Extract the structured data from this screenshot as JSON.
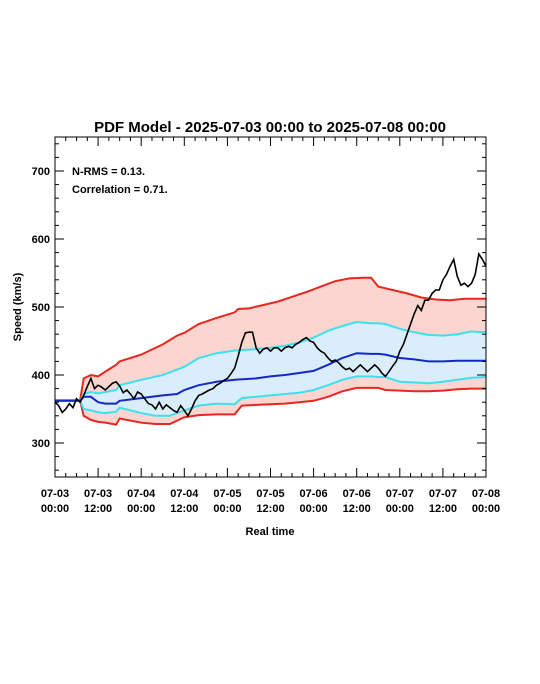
{
  "chart_data": {
    "type": "line",
    "title": "PDF Model - 2025-07-03 00:00 to 2025-07-08 00:00",
    "xlabel": "Real time",
    "ylabel": "Speed (km/s)",
    "xlim": [
      0,
      120
    ],
    "ylim": [
      250,
      750
    ],
    "y_ticks": [
      300,
      400,
      500,
      600,
      700
    ],
    "x_ticks": [
      {
        "x": 0,
        "line1": "07-03",
        "line2": "00:00"
      },
      {
        "x": 12,
        "line1": "07-03",
        "line2": "12:00"
      },
      {
        "x": 24,
        "line1": "07-04",
        "line2": "00:00"
      },
      {
        "x": 36,
        "line1": "07-04",
        "line2": "12:00"
      },
      {
        "x": 48,
        "line1": "07-05",
        "line2": "00:00"
      },
      {
        "x": 60,
        "line1": "07-05",
        "line2": "12:00"
      },
      {
        "x": 72,
        "line1": "07-06",
        "line2": "00:00"
      },
      {
        "x": 84,
        "line1": "07-06",
        "line2": "12:00"
      },
      {
        "x": 96,
        "line1": "07-07",
        "line2": "00:00"
      },
      {
        "x": 108,
        "line1": "07-07",
        "line2": "12:00"
      },
      {
        "x": 120,
        "line1": "07-08",
        "line2": "00:00"
      }
    ],
    "annotations": [
      "N-RMS = 0.13.",
      "Correlation = 0.71."
    ],
    "grid": false,
    "x_unit": "hours since 07-03 00:00",
    "colors": {
      "outer_band": "#e8281e",
      "outer_fill": "#fbd5d0",
      "inner_band": "#3ee0ee",
      "inner_fill": "#d9eefa",
      "median": "#1428c8",
      "observed": "#000000"
    },
    "series": [
      {
        "name": "upper_outer",
        "points": [
          [
            0,
            363
          ],
          [
            7,
            363
          ],
          [
            8,
            395
          ],
          [
            10,
            400
          ],
          [
            12,
            398
          ],
          [
            14,
            405
          ],
          [
            17,
            415
          ],
          [
            18,
            420
          ],
          [
            24,
            430
          ],
          [
            30,
            445
          ],
          [
            34,
            458
          ],
          [
            36,
            462
          ],
          [
            40,
            475
          ],
          [
            45,
            484
          ],
          [
            50,
            492
          ],
          [
            51,
            497
          ],
          [
            54,
            498
          ],
          [
            58,
            503
          ],
          [
            62,
            508
          ],
          [
            66,
            515
          ],
          [
            70,
            522
          ],
          [
            74,
            530
          ],
          [
            78,
            538
          ],
          [
            82,
            542
          ],
          [
            86,
            543
          ],
          [
            88,
            543
          ],
          [
            90,
            530
          ],
          [
            94,
            525
          ],
          [
            98,
            520
          ],
          [
            102,
            514
          ],
          [
            106,
            511
          ],
          [
            110,
            510
          ],
          [
            114,
            512
          ],
          [
            120,
            512
          ]
        ]
      },
      {
        "name": "upper_inner",
        "points": [
          [
            0,
            362
          ],
          [
            7,
            362
          ],
          [
            8,
            372
          ],
          [
            10,
            375
          ],
          [
            12,
            373
          ],
          [
            14,
            375
          ],
          [
            17,
            378
          ],
          [
            18,
            385
          ],
          [
            24,
            393
          ],
          [
            30,
            400
          ],
          [
            34,
            408
          ],
          [
            36,
            412
          ],
          [
            40,
            425
          ],
          [
            45,
            432
          ],
          [
            50,
            436
          ],
          [
            56,
            438
          ],
          [
            60,
            440
          ],
          [
            64,
            443
          ],
          [
            68,
            448
          ],
          [
            72,
            455
          ],
          [
            76,
            465
          ],
          [
            80,
            472
          ],
          [
            84,
            478
          ],
          [
            88,
            476
          ],
          [
            90,
            476
          ],
          [
            92,
            475
          ],
          [
            96,
            468
          ],
          [
            100,
            463
          ],
          [
            104,
            459
          ],
          [
            108,
            458
          ],
          [
            112,
            460
          ],
          [
            116,
            464
          ],
          [
            120,
            463
          ]
        ]
      },
      {
        "name": "median",
        "points": [
          [
            0,
            362
          ],
          [
            7,
            362
          ],
          [
            8,
            368
          ],
          [
            10,
            368
          ],
          [
            12,
            360
          ],
          [
            14,
            358
          ],
          [
            17,
            358
          ],
          [
            18,
            362
          ],
          [
            24,
            366
          ],
          [
            30,
            370
          ],
          [
            34,
            372
          ],
          [
            36,
            378
          ],
          [
            40,
            385
          ],
          [
            45,
            390
          ],
          [
            50,
            393
          ],
          [
            56,
            395
          ],
          [
            60,
            398
          ],
          [
            64,
            400
          ],
          [
            68,
            403
          ],
          [
            72,
            406
          ],
          [
            76,
            415
          ],
          [
            80,
            425
          ],
          [
            84,
            432
          ],
          [
            88,
            431
          ],
          [
            90,
            431
          ],
          [
            92,
            430
          ],
          [
            96,
            425
          ],
          [
            100,
            423
          ],
          [
            104,
            420
          ],
          [
            108,
            420
          ],
          [
            112,
            421
          ],
          [
            116,
            421
          ],
          [
            120,
            421
          ]
        ]
      },
      {
        "name": "lower_inner",
        "points": [
          [
            0,
            362
          ],
          [
            7,
            362
          ],
          [
            8,
            350
          ],
          [
            10,
            348
          ],
          [
            12,
            345
          ],
          [
            14,
            344
          ],
          [
            17,
            346
          ],
          [
            18,
            352
          ],
          [
            24,
            344
          ],
          [
            28,
            340
          ],
          [
            32,
            340
          ],
          [
            36,
            348
          ],
          [
            40,
            355
          ],
          [
            45,
            358
          ],
          [
            50,
            357
          ],
          [
            52,
            366
          ],
          [
            56,
            368
          ],
          [
            60,
            370
          ],
          [
            64,
            372
          ],
          [
            68,
            374
          ],
          [
            72,
            378
          ],
          [
            76,
            385
          ],
          [
            80,
            393
          ],
          [
            84,
            398
          ],
          [
            88,
            398
          ],
          [
            90,
            397
          ],
          [
            92,
            397
          ],
          [
            96,
            390
          ],
          [
            100,
            389
          ],
          [
            104,
            388
          ],
          [
            108,
            390
          ],
          [
            112,
            393
          ],
          [
            116,
            396
          ],
          [
            120,
            397
          ]
        ]
      },
      {
        "name": "lower_outer",
        "points": [
          [
            0,
            362
          ],
          [
            7,
            362
          ],
          [
            8,
            340
          ],
          [
            10,
            334
          ],
          [
            12,
            331
          ],
          [
            14,
            330
          ],
          [
            17,
            327
          ],
          [
            18,
            336
          ],
          [
            24,
            330
          ],
          [
            28,
            328
          ],
          [
            32,
            328
          ],
          [
            36,
            338
          ],
          [
            40,
            341
          ],
          [
            45,
            342
          ],
          [
            50,
            342
          ],
          [
            52,
            355
          ],
          [
            56,
            356
          ],
          [
            60,
            357
          ],
          [
            64,
            358
          ],
          [
            68,
            360
          ],
          [
            72,
            362
          ],
          [
            76,
            368
          ],
          [
            80,
            376
          ],
          [
            84,
            381
          ],
          [
            88,
            381
          ],
          [
            90,
            381
          ],
          [
            92,
            378
          ],
          [
            96,
            377
          ],
          [
            100,
            376
          ],
          [
            104,
            376
          ],
          [
            108,
            377
          ],
          [
            112,
            379
          ],
          [
            116,
            380
          ],
          [
            120,
            380
          ]
        ]
      },
      {
        "name": "observed",
        "points": [
          [
            0,
            360
          ],
          [
            1,
            355
          ],
          [
            2,
            345
          ],
          [
            3,
            350
          ],
          [
            4,
            358
          ],
          [
            5,
            352
          ],
          [
            6,
            365
          ],
          [
            7,
            360
          ],
          [
            8,
            370
          ],
          [
            9,
            383
          ],
          [
            10,
            395
          ],
          [
            11,
            380
          ],
          [
            12,
            385
          ],
          [
            13,
            382
          ],
          [
            14,
            378
          ],
          [
            15,
            383
          ],
          [
            16,
            388
          ],
          [
            17,
            390
          ],
          [
            18,
            384
          ],
          [
            19,
            374
          ],
          [
            20,
            378
          ],
          [
            21,
            372
          ],
          [
            22,
            365
          ],
          [
            23,
            375
          ],
          [
            24,
            372
          ],
          [
            25,
            365
          ],
          [
            26,
            358
          ],
          [
            27,
            356
          ],
          [
            28,
            350
          ],
          [
            29,
            360
          ],
          [
            30,
            350
          ],
          [
            31,
            356
          ],
          [
            32,
            352
          ],
          [
            33,
            348
          ],
          [
            34,
            345
          ],
          [
            35,
            355
          ],
          [
            36,
            348
          ],
          [
            37,
            340
          ],
          [
            38,
            350
          ],
          [
            39,
            362
          ],
          [
            40,
            370
          ],
          [
            41,
            372
          ],
          [
            42,
            375
          ],
          [
            43,
            378
          ],
          [
            44,
            380
          ],
          [
            45,
            385
          ],
          [
            46,
            388
          ],
          [
            47,
            392
          ],
          [
            48,
            395
          ],
          [
            49,
            402
          ],
          [
            50,
            410
          ],
          [
            51,
            428
          ],
          [
            52,
            448
          ],
          [
            53,
            462
          ],
          [
            54,
            463
          ],
          [
            55,
            463
          ],
          [
            56,
            440
          ],
          [
            57,
            432
          ],
          [
            58,
            438
          ],
          [
            59,
            440
          ],
          [
            60,
            435
          ],
          [
            61,
            440
          ],
          [
            62,
            440
          ],
          [
            63,
            435
          ],
          [
            64,
            440
          ],
          [
            65,
            442
          ],
          [
            66,
            440
          ],
          [
            67,
            445
          ],
          [
            68,
            448
          ],
          [
            69,
            452
          ],
          [
            70,
            455
          ],
          [
            71,
            450
          ],
          [
            72,
            448
          ],
          [
            73,
            440
          ],
          [
            74,
            435
          ],
          [
            75,
            432
          ],
          [
            76,
            425
          ],
          [
            77,
            420
          ],
          [
            78,
            422
          ],
          [
            79,
            418
          ],
          [
            80,
            412
          ],
          [
            81,
            408
          ],
          [
            82,
            410
          ],
          [
            83,
            405
          ],
          [
            84,
            410
          ],
          [
            85,
            415
          ],
          [
            86,
            410
          ],
          [
            87,
            405
          ],
          [
            88,
            410
          ],
          [
            89,
            415
          ],
          [
            90,
            410
          ],
          [
            91,
            403
          ],
          [
            92,
            398
          ],
          [
            93,
            405
          ],
          [
            94,
            413
          ],
          [
            95,
            420
          ],
          [
            96,
            435
          ],
          [
            97,
            445
          ],
          [
            98,
            460
          ],
          [
            99,
            475
          ],
          [
            100,
            490
          ],
          [
            101,
            502
          ],
          [
            102,
            495
          ],
          [
            103,
            510
          ],
          [
            104,
            510
          ],
          [
            105,
            520
          ],
          [
            106,
            525
          ],
          [
            107,
            525
          ],
          [
            108,
            540
          ],
          [
            109,
            548
          ],
          [
            110,
            560
          ],
          [
            111,
            570
          ],
          [
            112,
            545
          ],
          [
            113,
            532
          ],
          [
            114,
            535
          ],
          [
            115,
            530
          ],
          [
            116,
            535
          ],
          [
            117,
            548
          ],
          [
            118,
            578
          ],
          [
            119,
            570
          ],
          [
            120,
            560
          ]
        ]
      }
    ]
  }
}
